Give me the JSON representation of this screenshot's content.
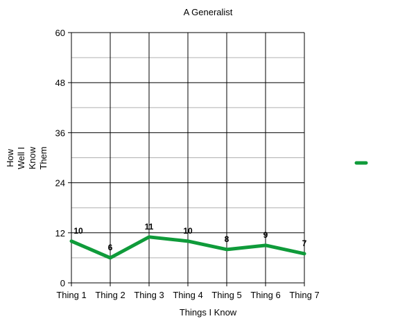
{
  "chart_data": {
    "type": "line",
    "title": "A Generalist",
    "xlabel": "Things I Know",
    "ylabel_lines": [
      "How",
      "Well I",
      "Know",
      "Them"
    ],
    "categories": [
      "Thing 1",
      "Thing 2",
      "Thing 3",
      "Thing 4",
      "Thing 5",
      "Thing 6",
      "Thing 7"
    ],
    "series": [
      {
        "values": [
          10,
          6,
          11,
          10,
          8,
          9,
          7
        ]
      }
    ],
    "data_labels": [
      "10",
      "6",
      "11",
      "10",
      "8",
      "9",
      "7"
    ],
    "ylim": [
      0,
      60
    ],
    "yticks": [
      0,
      12,
      24,
      36,
      48,
      60
    ],
    "ytick_labels": [
      "0",
      "12",
      "24",
      "36",
      "48",
      "60"
    ],
    "minor_gridlines": [
      6,
      18,
      30,
      42,
      54
    ],
    "grid": true,
    "legend": "right",
    "colors": {
      "line": "#0f9b3a",
      "major_grid": "#000000",
      "minor_grid": "#b0b0b0"
    }
  }
}
